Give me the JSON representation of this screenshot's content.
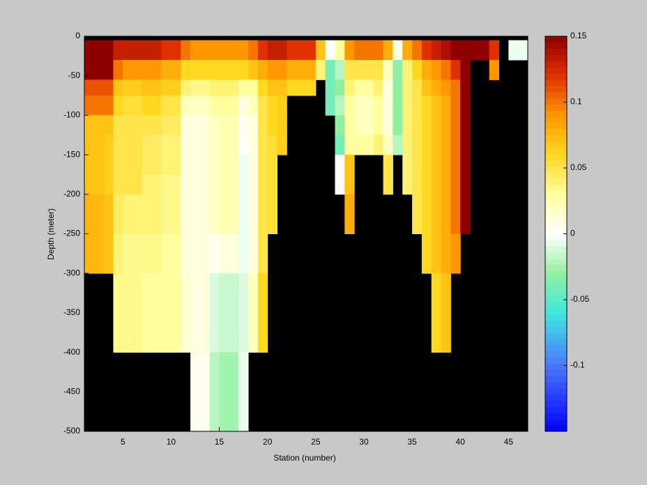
{
  "chart_data": {
    "type": "heatmap",
    "xlabel": "Station (number)",
    "ylabel": "Depth (meter)",
    "xlim": [
      1,
      47
    ],
    "ylim": [
      -500,
      0
    ],
    "xticks": [
      5,
      10,
      15,
      20,
      25,
      30,
      35,
      40,
      45
    ],
    "yticks": [
      0,
      -50,
      -100,
      -150,
      -200,
      -250,
      -300,
      -350,
      -400,
      -450,
      -500
    ],
    "x_edges": [
      1,
      2,
      3,
      4,
      5,
      6,
      7,
      8,
      9,
      10,
      11,
      12,
      13,
      14,
      15,
      16,
      17,
      18,
      19,
      20,
      21,
      22,
      23,
      24,
      25,
      26,
      27,
      28,
      29,
      30,
      31,
      32,
      33,
      34,
      35,
      36,
      37,
      38,
      39,
      40,
      41,
      42,
      43,
      44,
      45,
      46,
      47
    ],
    "y_edges": [
      -5,
      -30,
      -55,
      -75,
      -100,
      -125,
      -150,
      -175,
      -200,
      -225,
      -250,
      -300,
      -400,
      -500
    ],
    "values": [
      [
        0.15,
        0.15,
        0.15,
        0.13,
        0.13,
        0.13,
        0.13,
        0.13,
        0.12,
        0.12,
        0.1,
        0.09,
        0.09,
        0.09,
        0.09,
        0.09,
        0.09,
        0.1,
        0.12,
        0.13,
        0.13,
        0.12,
        0.12,
        0.12,
        0.07,
        0,
        0.03,
        0.09,
        0.1,
        0.1,
        0.1,
        0.08,
        0.01,
        0.08,
        0.1,
        0.12,
        0.13,
        0.14,
        0.15,
        0.15,
        0.15,
        0.15,
        0.12,
        null,
        -0.005,
        -0.005
      ],
      [
        0.15,
        0.15,
        0.15,
        0.1,
        0.09,
        0.09,
        0.09,
        0.09,
        0.08,
        0.08,
        0.06,
        0.06,
        0.06,
        0.06,
        0.06,
        0.06,
        0.06,
        0.07,
        0.08,
        0.09,
        0.09,
        0.08,
        0.08,
        0.08,
        0.04,
        -0.04,
        -0.02,
        0.05,
        0.05,
        0.05,
        0.05,
        0.02,
        -0.03,
        0.04,
        0.06,
        0.08,
        0.09,
        0.1,
        0.12,
        0.15,
        null,
        null,
        0.09,
        null,
        null,
        null
      ],
      [
        0.11,
        0.11,
        0.11,
        0.07,
        0.065,
        0.065,
        0.07,
        0.07,
        0.065,
        0.065,
        0.04,
        0.035,
        0.035,
        0.04,
        0.04,
        0.04,
        0.03,
        0.03,
        0.06,
        0.07,
        0.07,
        0.06,
        0.06,
        0.06,
        null,
        -0.04,
        -0.03,
        0.04,
        0.03,
        0.03,
        0.04,
        0.01,
        -0.03,
        0.04,
        0.05,
        0.07,
        0.08,
        0.09,
        0.1,
        0.15,
        null,
        null,
        null,
        null,
        null,
        null
      ],
      [
        0.1,
        0.1,
        0.1,
        0.06,
        0.055,
        0.055,
        0.06,
        0.06,
        0.05,
        0.05,
        0.02,
        0.02,
        0.02,
        0.03,
        0.03,
        0.03,
        0.01,
        0.02,
        0.05,
        0.06,
        0.065,
        null,
        null,
        null,
        null,
        -0.04,
        -0.02,
        0.03,
        0.02,
        0.02,
        0.03,
        0.01,
        -0.03,
        0.04,
        0.05,
        0.06,
        0.07,
        0.08,
        0.1,
        0.15,
        null,
        null,
        null,
        null,
        null,
        null
      ],
      [
        0.07,
        0.07,
        0.07,
        0.05,
        0.05,
        0.05,
        0.05,
        0.05,
        0.045,
        0.045,
        0.01,
        0.01,
        0.01,
        0.02,
        0.025,
        0.025,
        0.005,
        0.01,
        0.05,
        0.06,
        0.065,
        null,
        null,
        null,
        null,
        null,
        -0.03,
        0.03,
        0.02,
        0.02,
        0.03,
        0.01,
        -0.03,
        0.04,
        0.05,
        0.06,
        0.07,
        0.08,
        0.1,
        0.15,
        null,
        null,
        null,
        null,
        null,
        null
      ],
      [
        0.07,
        0.07,
        0.065,
        0.05,
        0.05,
        0.05,
        0.045,
        0.045,
        0.04,
        0.04,
        0.01,
        0.01,
        0.01,
        0.02,
        0.025,
        0.025,
        0,
        0.01,
        0.05,
        0.055,
        0.065,
        null,
        null,
        null,
        null,
        null,
        -0.04,
        0.03,
        0.03,
        0.03,
        0.04,
        0.02,
        -0.02,
        0.04,
        0.05,
        0.06,
        0.07,
        0.08,
        0.1,
        0.15,
        null,
        null,
        null,
        null,
        null,
        null
      ],
      [
        0.07,
        0.07,
        0.065,
        0.05,
        0.05,
        0.05,
        0.045,
        0.045,
        0.04,
        0.04,
        0.01,
        0.01,
        0.01,
        0.02,
        0.025,
        0.025,
        -0.005,
        0.01,
        0.05,
        0.055,
        null,
        null,
        null,
        null,
        null,
        null,
        0,
        0.07,
        null,
        null,
        null,
        0.05,
        null,
        0.04,
        0.05,
        0.06,
        0.07,
        0.08,
        0.1,
        0.15,
        null,
        null,
        null,
        null,
        null,
        null
      ],
      [
        0.07,
        0.07,
        0.065,
        0.05,
        0.05,
        0.05,
        0.04,
        0.04,
        0.035,
        0.035,
        0.01,
        0.01,
        0.01,
        0.02,
        0.025,
        0.025,
        -0.005,
        0.01,
        0.05,
        0.055,
        null,
        null,
        null,
        null,
        null,
        null,
        0,
        0.07,
        null,
        null,
        null,
        0.05,
        null,
        0.04,
        0.05,
        0.06,
        0.07,
        0.08,
        0.1,
        0.15,
        null,
        null,
        null,
        null,
        null,
        null
      ],
      [
        0.075,
        0.075,
        0.07,
        0.045,
        0.04,
        0.04,
        0.04,
        0.04,
        0.035,
        0.035,
        0.01,
        0.01,
        0.01,
        0.02,
        0.025,
        0.025,
        -0.005,
        0.01,
        0.05,
        0.055,
        null,
        null,
        null,
        null,
        null,
        null,
        null,
        0.08,
        null,
        null,
        null,
        null,
        null,
        null,
        0.05,
        0.06,
        0.07,
        0.08,
        0.1,
        0.15,
        null,
        null,
        null,
        null,
        null,
        null
      ],
      [
        0.075,
        0.075,
        0.07,
        0.045,
        0.04,
        0.04,
        0.04,
        0.04,
        0.035,
        0.035,
        0.01,
        0.01,
        0.01,
        0.02,
        0.025,
        0.025,
        -0.005,
        0.01,
        0.05,
        0.055,
        null,
        null,
        null,
        null,
        null,
        null,
        null,
        0.08,
        null,
        null,
        null,
        null,
        null,
        null,
        0.05,
        0.06,
        0.07,
        0.08,
        0.1,
        0.15,
        null,
        null,
        null,
        null,
        null,
        null
      ],
      [
        0.075,
        0.075,
        0.07,
        0.04,
        0.035,
        0.035,
        0.035,
        0.035,
        0.03,
        0.03,
        0.01,
        0.01,
        0.01,
        0.005,
        0.01,
        0.01,
        -0.005,
        0.01,
        0.05,
        null,
        null,
        null,
        null,
        null,
        null,
        null,
        null,
        null,
        null,
        null,
        null,
        null,
        null,
        null,
        null,
        0.06,
        0.07,
        0.08,
        0.09,
        null,
        null,
        null,
        null,
        null,
        null,
        null
      ],
      [
        null,
        null,
        null,
        0.035,
        0.035,
        0.035,
        0.03,
        0.03,
        0.03,
        0.03,
        0.015,
        0.01,
        0.01,
        -0.01,
        -0.015,
        -0.015,
        -0.01,
        0.02,
        0.06,
        null,
        null,
        null,
        null,
        null,
        null,
        null,
        null,
        null,
        null,
        null,
        null,
        null,
        null,
        null,
        null,
        null,
        0.06,
        0.07,
        null,
        null,
        null,
        null,
        null,
        null,
        null,
        null
      ],
      [
        null,
        null,
        null,
        null,
        null,
        null,
        null,
        null,
        null,
        null,
        null,
        0.005,
        0.005,
        -0.02,
        -0.025,
        -0.025,
        -0.005,
        null,
        null,
        null,
        null,
        null,
        null,
        null,
        null,
        null,
        null,
        null,
        null,
        null,
        null,
        null,
        null,
        null,
        null,
        null,
        null,
        null,
        null,
        null,
        null,
        null,
        null,
        null,
        null,
        null
      ]
    ],
    "background": "#000000",
    "clim": [
      -0.15,
      0.15
    ],
    "cticks": [
      -0.1,
      -0.05,
      0,
      0.05,
      0.1,
      0.15
    ],
    "colormap": [
      {
        "value": -0.15,
        "color": "#0000ff"
      },
      {
        "value": -0.1,
        "color": "#4a78ff"
      },
      {
        "value": -0.06,
        "color": "#40e8e0"
      },
      {
        "value": -0.03,
        "color": "#90f0a0"
      },
      {
        "value": 0,
        "color": "#ffffff"
      },
      {
        "value": 0.03,
        "color": "#ffffa0"
      },
      {
        "value": 0.06,
        "color": "#ffd820"
      },
      {
        "value": 0.09,
        "color": "#ff9800"
      },
      {
        "value": 0.12,
        "color": "#e03000"
      },
      {
        "value": 0.15,
        "color": "#900000"
      }
    ]
  }
}
